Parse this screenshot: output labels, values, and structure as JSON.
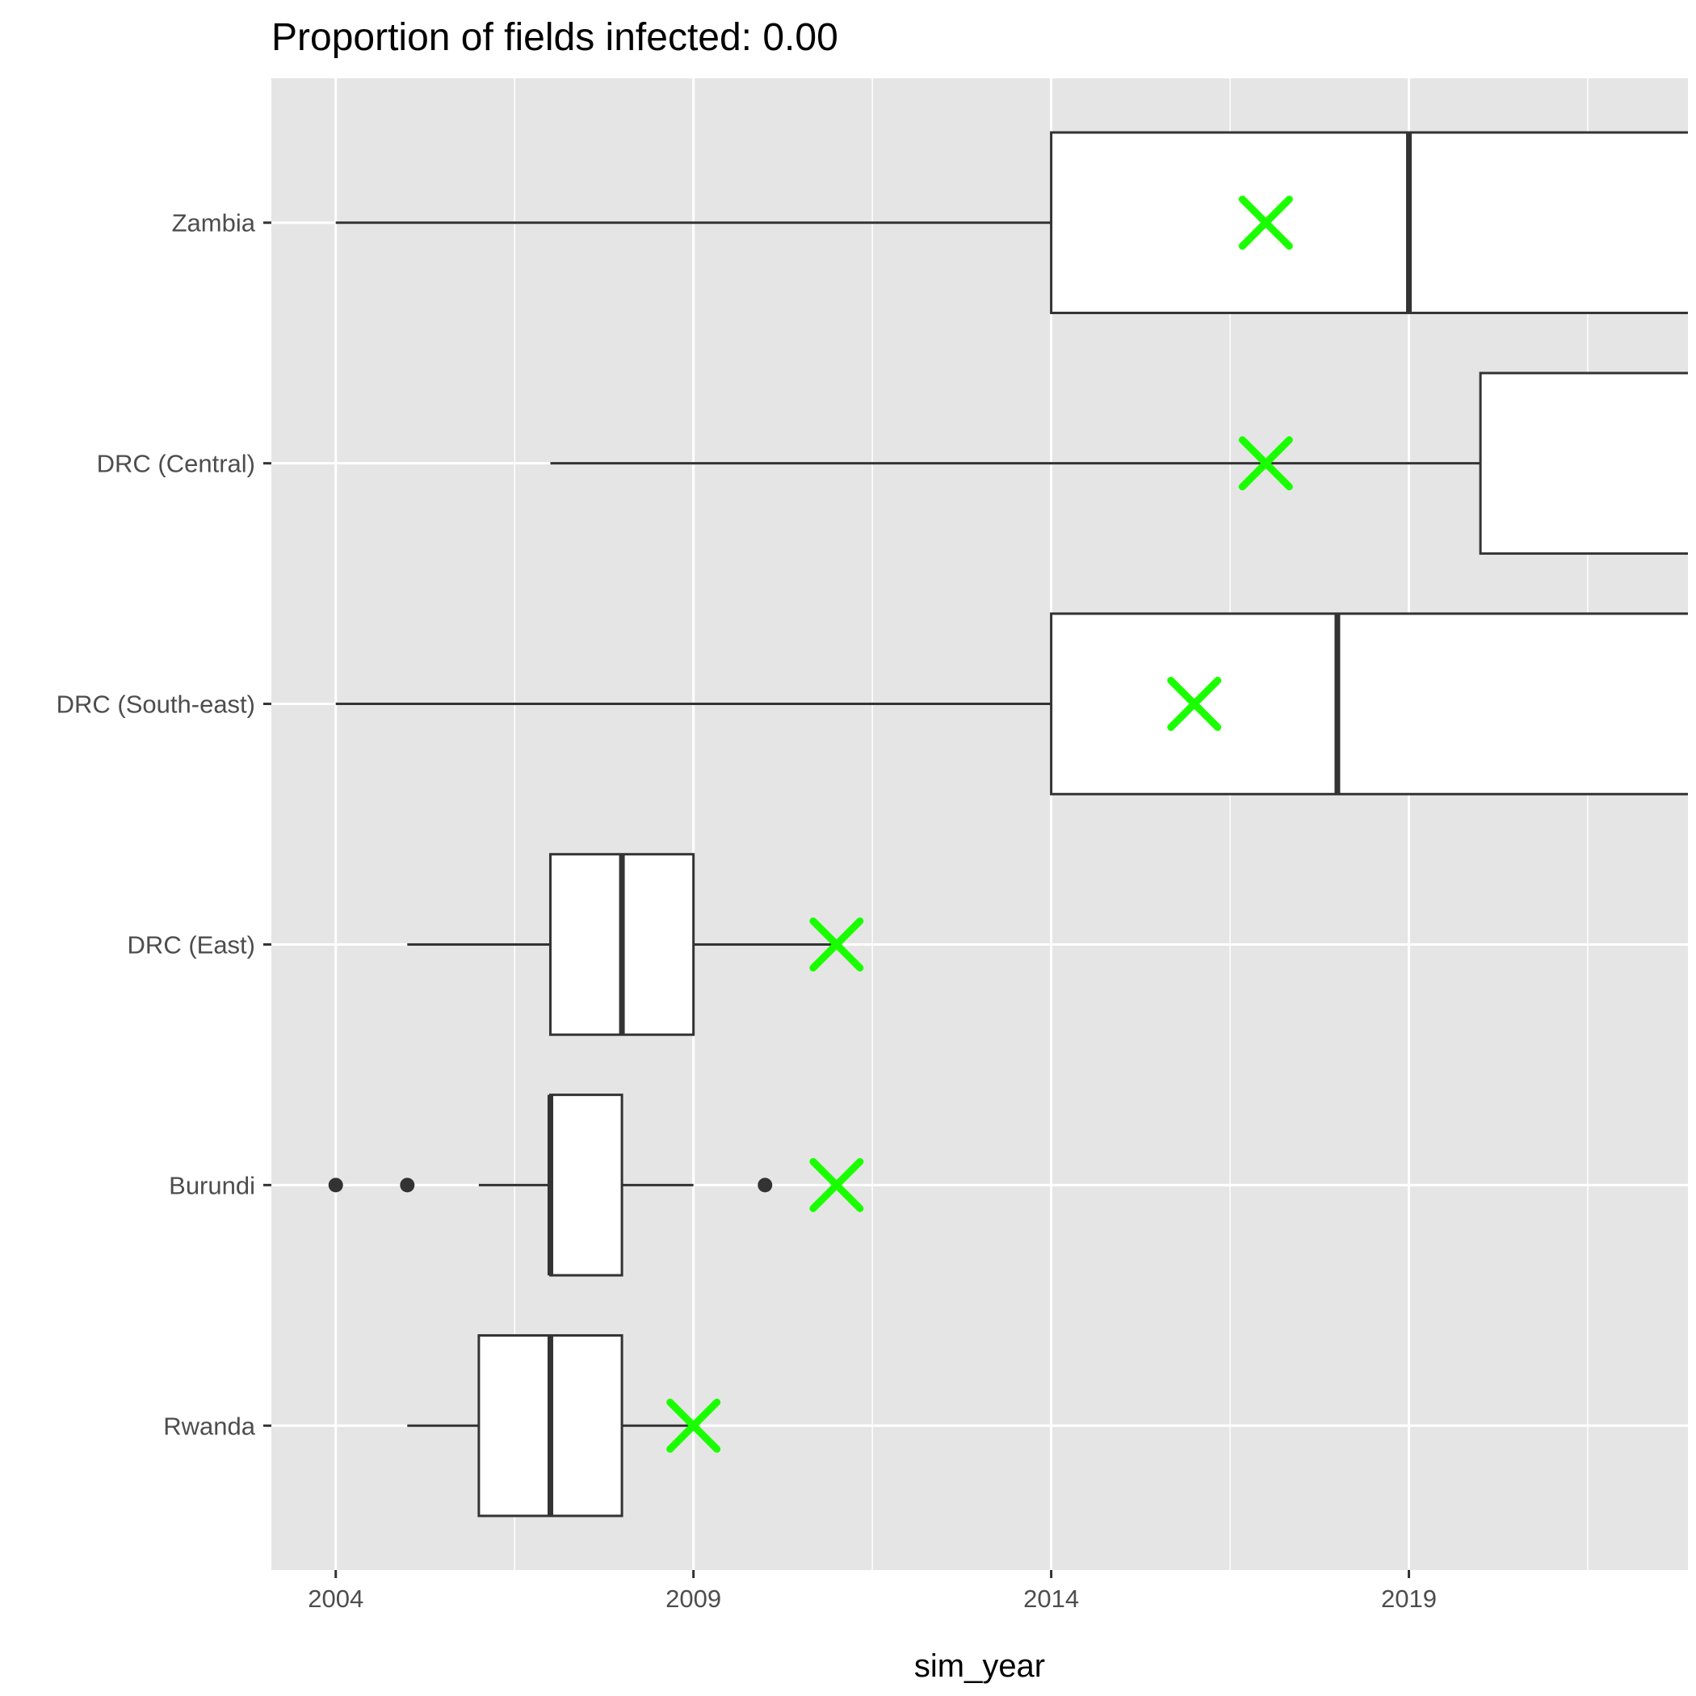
{
  "chart_data": {
    "type": "boxplot",
    "title": "Proportion of fields infected: 0.00",
    "xlabel": "sim_year",
    "ylabel": "",
    "xlim": [
      2003.1,
      2022.9
    ],
    "x_ticks": [
      2004,
      2009,
      2014,
      2019
    ],
    "x_minor_ticks": [
      2006.5,
      2011.5,
      2016.5,
      2021.5
    ],
    "grid": true,
    "background": "#e5e5e5",
    "grid_color": "#ffffff",
    "box_fill": "#ffffff",
    "box_stroke": "#333333",
    "outlier_color": "#333333",
    "marker_color": "#1aff00",
    "marker_shape": "x",
    "categories": [
      "Zambia",
      "DRC (Central)",
      "DRC (South-east)",
      "DRC (East)",
      "Burundi",
      "Rwanda"
    ],
    "boxes": [
      {
        "category": "Zambia",
        "whisker_low": 2004,
        "q1": 2014,
        "median": 2019,
        "q3": 2023,
        "whisker_high": 2023,
        "outliers": [],
        "observed": 2017
      },
      {
        "category": "DRC (Central)",
        "whisker_low": 2007,
        "q1": 2020,
        "median": 2023,
        "q3": 2023,
        "whisker_high": 2023,
        "outliers": [],
        "observed": 2017
      },
      {
        "category": "DRC (South-east)",
        "whisker_low": 2004,
        "q1": 2014,
        "median": 2018,
        "q3": 2023,
        "whisker_high": 2023,
        "outliers": [],
        "observed": 2016
      },
      {
        "category": "DRC (East)",
        "whisker_low": 2005,
        "q1": 2007,
        "median": 2008,
        "q3": 2009,
        "whisker_high": 2011,
        "outliers": [],
        "observed": 2011
      },
      {
        "category": "Burundi",
        "whisker_low": 2006,
        "q1": 2007,
        "median": 2007,
        "q3": 2008,
        "whisker_high": 2009,
        "outliers": [
          2004,
          2005,
          2010
        ],
        "observed": 2011
      },
      {
        "category": "Rwanda",
        "whisker_low": 2005,
        "q1": 2006,
        "median": 2007,
        "q3": 2008,
        "whisker_high": 2009,
        "outliers": [],
        "observed": 2009
      }
    ]
  }
}
